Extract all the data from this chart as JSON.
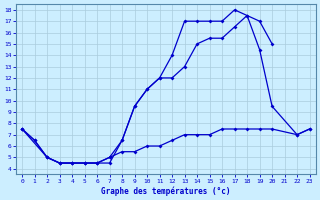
{
  "title": "Graphe des températures (°c)",
  "bg_color": "#cceeff",
  "grid_color": "#aaccdd",
  "line_color": "#0000cc",
  "xlim": [
    -0.5,
    23.5
  ],
  "ylim": [
    3.5,
    18.5
  ],
  "xticks": [
    0,
    1,
    2,
    3,
    4,
    5,
    6,
    7,
    8,
    9,
    10,
    11,
    12,
    13,
    14,
    15,
    16,
    17,
    18,
    19,
    20,
    21,
    22,
    23
  ],
  "yticks": [
    4,
    5,
    6,
    7,
    8,
    9,
    10,
    11,
    12,
    13,
    14,
    15,
    16,
    17,
    18
  ],
  "line1_x": [
    0,
    1,
    2,
    3,
    4,
    5,
    6,
    7,
    8,
    9,
    10,
    11,
    12,
    13,
    14,
    15,
    16,
    17,
    18,
    19,
    20
  ],
  "line1_y": [
    7.5,
    6.5,
    5.0,
    4.5,
    4.5,
    4.5,
    4.5,
    4.5,
    6.5,
    9.5,
    11.0,
    12.0,
    14.0,
    17.0,
    17.0,
    17.0,
    17.0,
    18.0,
    17.5,
    17.0,
    15.0
  ],
  "line2_x": [
    0,
    2,
    3,
    4,
    5,
    6,
    7,
    8,
    9,
    10,
    11,
    12,
    13,
    14,
    15,
    16,
    17,
    18,
    19,
    20,
    22,
    23
  ],
  "line2_y": [
    7.5,
    5.0,
    4.5,
    4.5,
    4.5,
    4.5,
    5.0,
    6.5,
    9.5,
    11.0,
    12.0,
    12.0,
    13.0,
    15.0,
    15.5,
    15.5,
    16.5,
    17.5,
    14.5,
    9.5,
    7.0,
    7.5
  ],
  "line3_x": [
    0,
    1,
    2,
    3,
    4,
    5,
    6,
    7,
    8,
    9,
    10,
    11,
    12,
    13,
    14,
    15,
    16,
    17,
    18,
    19,
    20,
    22,
    23
  ],
  "line3_y": [
    7.5,
    6.5,
    5.0,
    4.5,
    4.5,
    4.5,
    4.5,
    5.0,
    5.5,
    5.5,
    6.0,
    6.0,
    6.5,
    7.0,
    7.0,
    7.0,
    7.5,
    7.5,
    7.5,
    7.5,
    7.5,
    7.0,
    7.5
  ]
}
